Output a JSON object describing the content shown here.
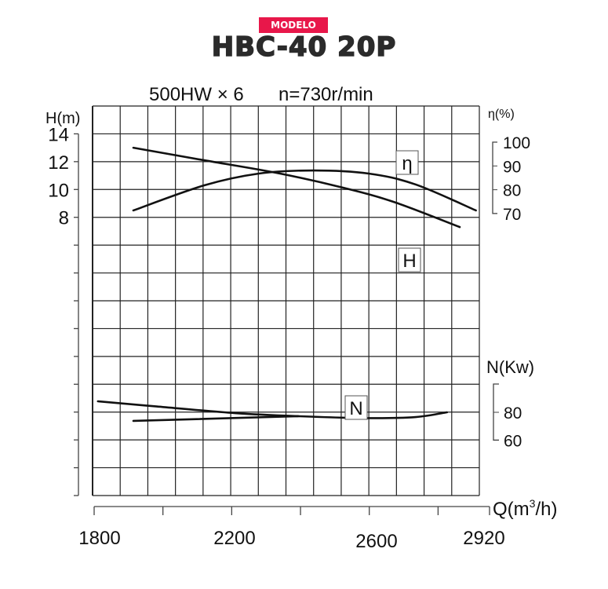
{
  "header": {
    "badge": "MODELO",
    "model": "HBC-40 20P"
  },
  "chart_data": {
    "type": "line",
    "title": "500HW × 6",
    "subtitle": "n=730r/min",
    "xlabel": "Q(m³/h)",
    "xlabel_base": "Q(m",
    "xlabel_sup": "3",
    "xlabel_tail": "/h)",
    "xlim": [
      1800,
      2920
    ],
    "xticks": [
      1800,
      2000,
      2200,
      2400,
      2600,
      2800,
      2920
    ],
    "xtick_labels": [
      "1800",
      "2200",
      "2600",
      "2920"
    ],
    "grid": true,
    "axes": {
      "H": {
        "label": "H(m)",
        "ylim": [
          6.5,
          15
        ],
        "ticks": [
          "14",
          "12",
          "10",
          "8"
        ],
        "tick_values": [
          14,
          12,
          10,
          8
        ]
      },
      "eta": {
        "label": "η(%)",
        "ticks": [
          "100",
          "90",
          "80",
          "70"
        ],
        "tick_values": [
          100,
          90,
          80,
          70
        ]
      },
      "N": {
        "label": "N(Kw)",
        "ticks": [
          "80",
          "60"
        ],
        "tick_values": [
          80,
          60
        ]
      }
    },
    "series": [
      {
        "name": "H",
        "axis": "H",
        "label": "H",
        "x": [
          1914,
          2120,
          2329,
          2512,
          2672,
          2863
        ],
        "y": [
          13.0,
          12.1,
          11.2,
          10.2,
          9.1,
          7.3
        ]
      },
      {
        "name": "η",
        "axis": "eta",
        "label": "η",
        "x": [
          1914,
          2119,
          2279,
          2438,
          2598,
          2735,
          2910
        ],
        "y": [
          71.3,
          81.8,
          86.8,
          88.1,
          86.8,
          82.2,
          71.3
        ]
      },
      {
        "name": "N",
        "axis": "N",
        "label": "N",
        "x": [
          1811,
          1982,
          2210,
          2393,
          2598,
          2735,
          2826
        ],
        "y": [
          87.9,
          84.2,
          79.4,
          77.2,
          75.8,
          76.6,
          80.0
        ]
      },
      {
        "name": "N-lower",
        "axis": "N",
        "x": [
          1914,
          2393
        ],
        "y": [
          73.8,
          77.2
        ]
      }
    ]
  }
}
